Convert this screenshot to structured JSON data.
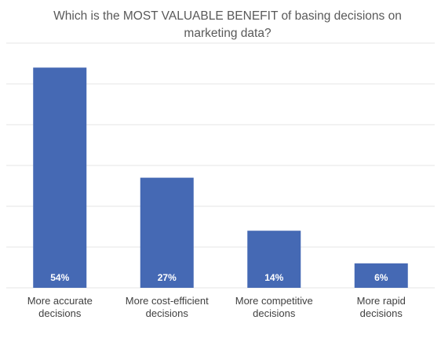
{
  "chart_data": {
    "type": "bar",
    "title": "Which is the MOST VALUABLE BENEFIT of basing decisions on marketing data?",
    "categories": [
      [
        "More accurate",
        "decisions"
      ],
      [
        "More cost-efficient",
        "decisions"
      ],
      [
        "More competitive",
        "decisions"
      ],
      [
        "More rapid",
        "decisions"
      ]
    ],
    "values": [
      54,
      27,
      14,
      6
    ],
    "data_labels": [
      "54%",
      "27%",
      "14%",
      "6%"
    ],
    "xlabel": "",
    "ylabel": "",
    "ylim": [
      0,
      60
    ],
    "grid": true,
    "colors": {
      "bar": "#4569b4",
      "grid": "#e6e6e6",
      "title": "#595959",
      "label": "#404040"
    }
  }
}
